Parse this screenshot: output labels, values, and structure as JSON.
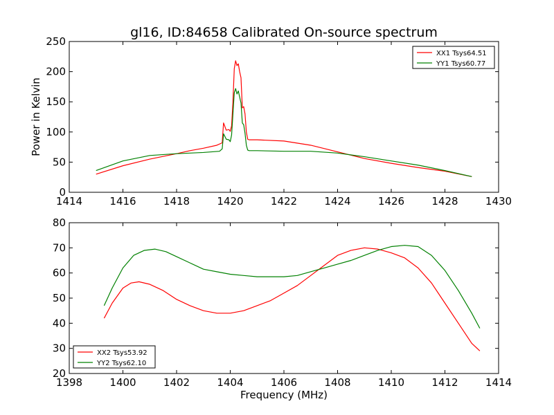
{
  "chart_data": [
    {
      "type": "line",
      "title": "gl16, ID:84658 Calibrated On-source spectrum",
      "xlabel": "",
      "ylabel": "Power in Kelvin",
      "xlim": [
        1414,
        1430
      ],
      "ylim": [
        0,
        250
      ],
      "xticks": [
        1414,
        1416,
        1418,
        1420,
        1422,
        1424,
        1426,
        1428,
        1430
      ],
      "yticks": [
        0,
        50,
        100,
        150,
        200,
        250
      ],
      "legend_position": "top-right",
      "series": [
        {
          "name": "XX1 Tsys64.51",
          "color": "#ff0000",
          "x": [
            1415,
            1416,
            1417,
            1418,
            1418.5,
            1419,
            1419.5,
            1419.7,
            1419.75,
            1419.85,
            1419.95,
            1420.0,
            1420.05,
            1420.1,
            1420.15,
            1420.2,
            1420.25,
            1420.3,
            1420.35,
            1420.4,
            1420.45,
            1420.5,
            1420.55,
            1420.6,
            1420.65,
            1420.7,
            1421,
            1422,
            1423,
            1424,
            1425,
            1426,
            1427,
            1428,
            1429
          ],
          "y": [
            30,
            44,
            55,
            64,
            69,
            73,
            78,
            82,
            115,
            103,
            104,
            101,
            110,
            150,
            205,
            218,
            210,
            213,
            200,
            190,
            140,
            142,
            130,
            100,
            88,
            87,
            87,
            85,
            78,
            67,
            56,
            48,
            41,
            35,
            26
          ]
        },
        {
          "name": "YY1 Tsys60.77",
          "color": "#008000",
          "x": [
            1415,
            1416,
            1417,
            1418,
            1419,
            1419.6,
            1419.7,
            1419.75,
            1419.85,
            1419.95,
            1420.0,
            1420.05,
            1420.1,
            1420.15,
            1420.2,
            1420.25,
            1420.3,
            1420.35,
            1420.4,
            1420.45,
            1420.5,
            1420.55,
            1420.6,
            1420.65,
            1420.7,
            1421,
            1422,
            1423,
            1424,
            1425,
            1426,
            1427,
            1428,
            1429
          ],
          "y": [
            36,
            52,
            61,
            64,
            66,
            68,
            72,
            97,
            88,
            87,
            84,
            95,
            130,
            165,
            172,
            163,
            168,
            158,
            148,
            115,
            112,
            98,
            78,
            70,
            69,
            69,
            68,
            68,
            65,
            59,
            52,
            45,
            36,
            26
          ]
        }
      ]
    },
    {
      "type": "line",
      "title": "",
      "xlabel": "Frequency (MHz)",
      "ylabel": "",
      "xlim": [
        1398,
        1414
      ],
      "ylim": [
        20,
        80
      ],
      "xticks": [
        1398,
        1400,
        1402,
        1404,
        1406,
        1408,
        1410,
        1412,
        1414
      ],
      "yticks": [
        20,
        30,
        40,
        50,
        60,
        70,
        80
      ],
      "legend_position": "bottom-left",
      "series": [
        {
          "name": "XX2 Tsys53.92",
          "color": "#ff0000",
          "x": [
            1399.3,
            1399.6,
            1400.0,
            1400.3,
            1400.6,
            1401.0,
            1401.5,
            1402.0,
            1402.5,
            1403.0,
            1403.5,
            1404.0,
            1404.5,
            1405.0,
            1405.5,
            1406.0,
            1406.5,
            1407.0,
            1407.5,
            1408.0,
            1408.5,
            1409.0,
            1409.5,
            1410.0,
            1410.5,
            1411.0,
            1411.5,
            1412.0,
            1412.5,
            1413.0,
            1413.3
          ],
          "y": [
            42,
            48,
            54,
            56,
            56.5,
            55.5,
            53,
            49.5,
            47,
            45,
            44,
            44,
            45,
            47,
            49,
            52,
            55,
            59,
            63,
            67,
            69,
            70,
            69.5,
            68,
            66,
            62,
            56,
            48,
            40,
            32,
            29
          ]
        },
        {
          "name": "YY2 Tsys62.10",
          "color": "#008000",
          "x": [
            1399.3,
            1399.6,
            1400.0,
            1400.4,
            1400.8,
            1401.2,
            1401.6,
            1402.0,
            1402.5,
            1403.0,
            1403.5,
            1404.0,
            1404.5,
            1405.0,
            1405.5,
            1406.0,
            1406.5,
            1407.0,
            1407.5,
            1408.0,
            1408.5,
            1409.0,
            1409.5,
            1410.0,
            1410.5,
            1411.0,
            1411.5,
            1412.0,
            1412.5,
            1413.0,
            1413.3
          ],
          "y": [
            47,
            54,
            62,
            67,
            69,
            69.5,
            68.5,
            66.5,
            64,
            61.5,
            60.5,
            59.5,
            59,
            58.5,
            58.5,
            58.5,
            59,
            60.5,
            62,
            63.5,
            65,
            67,
            69,
            70.5,
            71,
            70.5,
            67,
            61,
            53,
            44,
            38
          ]
        }
      ]
    }
  ]
}
